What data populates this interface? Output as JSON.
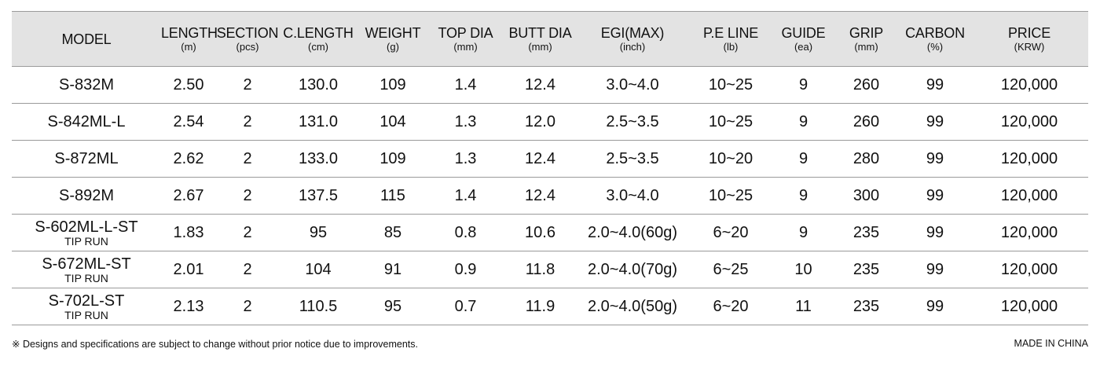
{
  "table": {
    "headers": [
      {
        "name": "MODEL",
        "unit": ""
      },
      {
        "name": "LENGTH",
        "unit": "(m)"
      },
      {
        "name": "SECTION",
        "unit": "(pcs)"
      },
      {
        "name": "C.LENGTH",
        "unit": "(cm)"
      },
      {
        "name": "WEIGHT",
        "unit": "(g)"
      },
      {
        "name": "TOP DIA",
        "unit": "(mm)"
      },
      {
        "name": "BUTT DIA",
        "unit": "(mm)"
      },
      {
        "name": "EGI(MAX)",
        "unit": "(inch)"
      },
      {
        "name": "P.E LINE",
        "unit": "(lb)"
      },
      {
        "name": "GUIDE",
        "unit": "(ea)"
      },
      {
        "name": "GRIP",
        "unit": "(mm)"
      },
      {
        "name": "CARBON",
        "unit": "(%)"
      },
      {
        "name": "PRICE",
        "unit": "(KRW)"
      }
    ],
    "rows": [
      {
        "model": "S-832M",
        "model_sub": "",
        "length": "2.50",
        "section": "2",
        "c_length": "130.0",
        "weight": "109",
        "top_dia": "1.4",
        "butt_dia": "12.4",
        "egi": "3.0~4.0",
        "pe_line": "10~25",
        "guide": "9",
        "grip": "260",
        "carbon": "99",
        "price": "120,000"
      },
      {
        "model": "S-842ML-L",
        "model_sub": "",
        "length": "2.54",
        "section": "2",
        "c_length": "131.0",
        "weight": "104",
        "top_dia": "1.3",
        "butt_dia": "12.0",
        "egi": "2.5~3.5",
        "pe_line": "10~25",
        "guide": "9",
        "grip": "260",
        "carbon": "99",
        "price": "120,000"
      },
      {
        "model": "S-872ML",
        "model_sub": "",
        "length": "2.62",
        "section": "2",
        "c_length": "133.0",
        "weight": "109",
        "top_dia": "1.3",
        "butt_dia": "12.4",
        "egi": "2.5~3.5",
        "pe_line": "10~20",
        "guide": "9",
        "grip": "280",
        "carbon": "99",
        "price": "120,000"
      },
      {
        "model": "S-892M",
        "model_sub": "",
        "length": "2.67",
        "section": "2",
        "c_length": "137.5",
        "weight": "115",
        "top_dia": "1.4",
        "butt_dia": "12.4",
        "egi": "3.0~4.0",
        "pe_line": "10~25",
        "guide": "9",
        "grip": "300",
        "carbon": "99",
        "price": "120,000"
      },
      {
        "model": "S-602ML-L-ST",
        "model_sub": "TIP RUN",
        "length": "1.83",
        "section": "2",
        "c_length": "95",
        "weight": "85",
        "top_dia": "0.8",
        "butt_dia": "10.6",
        "egi": "2.0~4.0(60g)",
        "pe_line": "6~20",
        "guide": "9",
        "grip": "235",
        "carbon": "99",
        "price": "120,000"
      },
      {
        "model": "S-672ML-ST",
        "model_sub": "TIP RUN",
        "length": "2.01",
        "section": "2",
        "c_length": "104",
        "weight": "91",
        "top_dia": "0.9",
        "butt_dia": "11.8",
        "egi": "2.0~4.0(70g)",
        "pe_line": "6~25",
        "guide": "10",
        "grip": "235",
        "carbon": "99",
        "price": "120,000"
      },
      {
        "model": "S-702L-ST",
        "model_sub": "TIP RUN",
        "length": "2.13",
        "section": "2",
        "c_length": "110.5",
        "weight": "95",
        "top_dia": "0.7",
        "butt_dia": "11.9",
        "egi": "2.0~4.0(50g)",
        "pe_line": "6~20",
        "guide": "11",
        "grip": "235",
        "carbon": "99",
        "price": "120,000"
      }
    ]
  },
  "footer": {
    "note": "※ Designs and specifications are subject to change without prior notice due to improvements.",
    "origin": "MADE IN CHINA"
  }
}
